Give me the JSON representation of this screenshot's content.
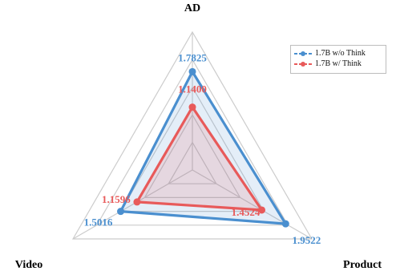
{
  "chart_data": {
    "type": "radar",
    "title": "",
    "axes": [
      "AD",
      "Product",
      "Video"
    ],
    "rmax": 2.5,
    "grid_levels": 5,
    "series": [
      {
        "name": "1.7B w/o Think",
        "values": [
          1.7825,
          1.9522,
          1.5016
        ],
        "labels": [
          "1.7825",
          "1.9522",
          "1.5016"
        ],
        "color": "#4a8fcf",
        "fill": "rgba(74,143,207,0.15)"
      },
      {
        "name": "1.7B w/ Think",
        "values": [
          1.14,
          1.4524,
          1.1596
        ],
        "labels": [
          "1.1400",
          "1.4524",
          "1.1596"
        ],
        "color": "#e85a5a",
        "fill": "rgba(232,90,90,0.15)"
      }
    ],
    "legend_position": "top-right",
    "grid": true
  }
}
